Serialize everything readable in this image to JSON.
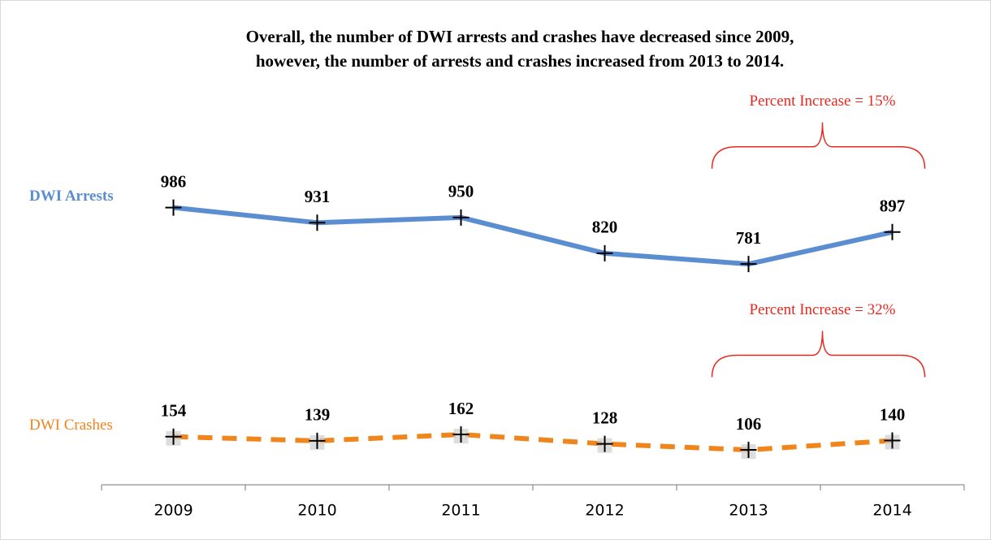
{
  "chart_data": {
    "type": "line",
    "title": [
      "Overall, the number of DWI arrests and crashes have decreased since 2009,",
      "however, the number of arrests and crashes increased from 2013 to 2014."
    ],
    "categories": [
      "2009",
      "2010",
      "2011",
      "2012",
      "2013",
      "2014"
    ],
    "series": [
      {
        "name": "DWI Arrests",
        "color": "#5b8ed1",
        "dash": false,
        "values": [
          986,
          931,
          950,
          820,
          781,
          897
        ]
      },
      {
        "name": "DWI Crashes",
        "color": "#f0851c",
        "dash": true,
        "values": [
          154,
          139,
          162,
          128,
          106,
          140
        ]
      }
    ],
    "annotations": [
      "Percent Increase = 15%",
      "Percent Increase = 32%"
    ],
    "annotation_color": "#e8281e",
    "ylim": [
      0,
      1150
    ]
  }
}
